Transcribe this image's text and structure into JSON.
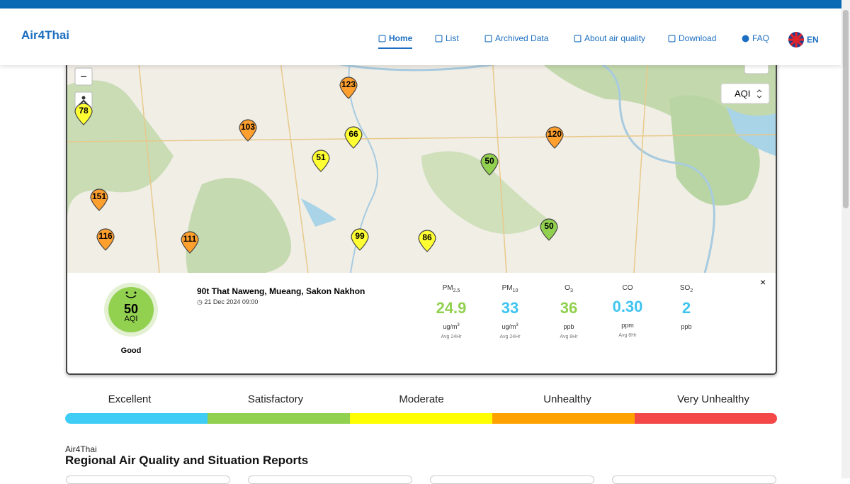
{
  "header": {
    "logo": "Air4Thai",
    "nav": [
      "Home",
      "List",
      "Archived Data",
      "About air quality",
      "Download",
      "FAQ"
    ],
    "language": "EN"
  },
  "map": {
    "layer_select": "AQI",
    "zoom_out": "−",
    "markers": [
      "78",
      "103",
      "123",
      "66",
      "51",
      "120",
      "50",
      "151",
      "116",
      "111",
      "99",
      "86",
      "50"
    ]
  },
  "station": {
    "name": "90t That Naweng, Mueang, Sakon Nakhon",
    "datetime": "21 Dec 2024 09:00",
    "aqi": "50",
    "aqi_label": "AQI",
    "status": "Good",
    "close": "×",
    "pollutants": [
      {
        "name": "PM",
        "sub": "2.5",
        "value": "24.9",
        "unit": "ug/m",
        "unit_sup": "3",
        "avg": "Avg 24Hr"
      },
      {
        "name": "PM",
        "sub": "10",
        "value": "33",
        "unit": "ug/m",
        "unit_sup": "3",
        "avg": "Avg 24Hr"
      },
      {
        "name": "O",
        "sub": "3",
        "value": "36",
        "unit": "ppb",
        "avg": "Avg 8Hr"
      },
      {
        "name": "CO",
        "value": "0.30",
        "unit": "ppm",
        "avg": "Avg 8Hr"
      },
      {
        "name": "SO",
        "sub": "2",
        "value": "2",
        "unit": "ppb"
      }
    ]
  },
  "legend": [
    "Excellent",
    "Satisfactory",
    "Moderate",
    "Unhealthy",
    "Very Unhealthy"
  ],
  "section": {
    "kicker": "Air4Thai",
    "title": "Regional Air Quality and Situation Reports"
  }
}
